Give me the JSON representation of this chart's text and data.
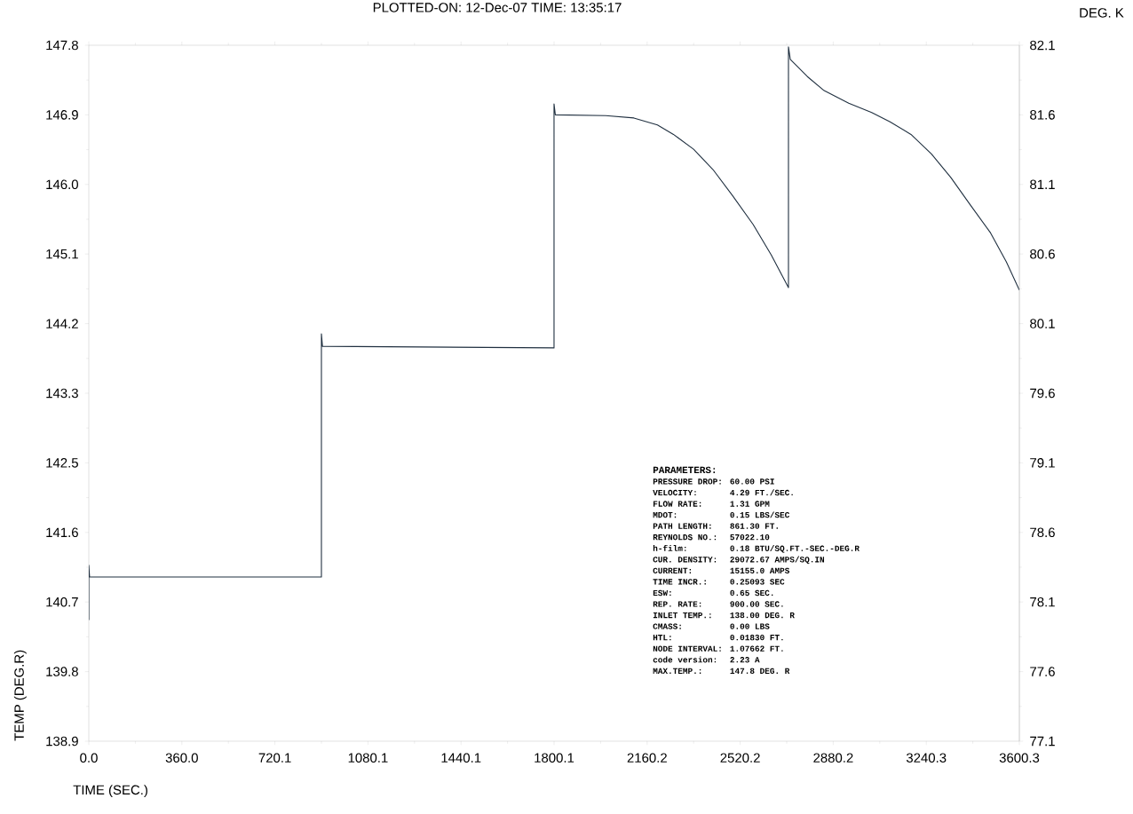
{
  "chart_data": {
    "type": "line",
    "xlabel": "TIME (SEC.)",
    "ylabel": "TEMP (DEG.R)",
    "y2label": "DEG. K",
    "x": [
      0,
      0,
      3,
      900,
      900,
      904,
      1800,
      1800,
      1805,
      2000,
      2109,
      2200,
      2262,
      2340,
      2415,
      2490,
      2570,
      2640,
      2707,
      2707,
      2714,
      2780,
      2845,
      2940,
      3029,
      3100,
      3181,
      3260,
      3335,
      3410,
      3489,
      3550,
      3600.3
    ],
    "values": [
      140.45,
      141.15,
      141.0,
      141.0,
      144.11,
      143.95,
      143.93,
      147.05,
      146.91,
      146.9,
      146.87,
      146.78,
      146.66,
      146.47,
      146.21,
      145.88,
      145.51,
      145.12,
      144.7,
      147.78,
      147.62,
      147.4,
      147.22,
      147.06,
      146.94,
      146.82,
      146.66,
      146.41,
      146.11,
      145.76,
      145.4,
      145.03,
      144.67
    ],
    "color": "#203040",
    "marker": "none",
    "line_style": "solid",
    "xlim": [
      0,
      3600.3
    ],
    "ylim": [
      138.9,
      147.8
    ],
    "y2lim": [
      77.1,
      82.1
    ],
    "xticks": [
      {
        "value": 0,
        "label": "0.0"
      },
      {
        "value": 360.03,
        "label": "360.0"
      },
      {
        "value": 720.06,
        "label": "720.1"
      },
      {
        "value": 1080.09,
        "label": "1080.1"
      },
      {
        "value": 1440.12,
        "label": "1440.1"
      },
      {
        "value": 1800.15,
        "label": "1800.1"
      },
      {
        "value": 2160.18,
        "label": "2160.2"
      },
      {
        "value": 2520.21,
        "label": "2520.2"
      },
      {
        "value": 2880.24,
        "label": "2880.2"
      },
      {
        "value": 3240.27,
        "label": "3240.3"
      },
      {
        "value": 3600.3,
        "label": "3600.3"
      }
    ],
    "yticks": [
      138.9,
      {
        "value": 139.79,
        "label": "139.8"
      },
      {
        "value": 140.68,
        "label": "140.7"
      },
      {
        "value": 141.57,
        "label": "141.6"
      },
      {
        "value": 142.46,
        "label": "142.5"
      },
      {
        "value": 143.35,
        "label": "143.3"
      },
      {
        "value": 144.24,
        "label": "144.2"
      },
      {
        "value": 145.13,
        "label": "145.1"
      },
      {
        "value": 146.02,
        "label": "146.0"
      },
      {
        "value": 146.91,
        "label": "146.9"
      },
      147.8
    ],
    "y2ticks": [
      77.1,
      77.6,
      78.1,
      78.6,
      79.1,
      79.6,
      80.1,
      80.6,
      81.1,
      81.6,
      82.1
    ],
    "annotations": [
      "PLOTTED-ON: 12-Dec-07 TIME: 13:35:17",
      "PARAMETERS:",
      "PRESSURE DROP:",
      "60.00 PSI",
      "VELOCITY:",
      "4.29 FT./SEC.",
      "FLOW RATE:",
      "1.31 GPM",
      "MDOT:",
      "0.15 LBS/SEC",
      "PATH LENGTH:",
      "861.30 FT.",
      "REYNOLDS NO.:",
      "57022.10",
      "h-film:",
      "0.18 BTU/SQ.FT.-SEC.-DEG.R",
      "CUR. DENSITY:",
      "29072.67 AMPS/SQ.IN",
      "CURRENT:",
      "15155.0 AMPS",
      "TIME INCR.:",
      "0.25093 SEC",
      "ESW:",
      "0.65 SEC.",
      "REP. RATE:",
      "900.00 SEC.",
      "INLET TEMP.:",
      "138.00 DEG. R",
      "CMASS:",
      "0.00 LBS",
      "HTL:",
      "0.01830 FT.",
      "NODE INTERVAL:",
      "1.07662 FT.",
      "code version:",
      "2.23 A",
      "MAX.TEMP.:",
      "147.8 DEG. R"
    ]
  }
}
